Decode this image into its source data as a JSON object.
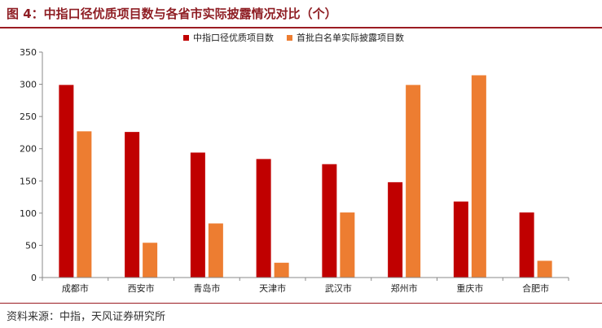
{
  "header": {
    "figure_title": "图 4：中指口径优质项目数与各省市实际披露情况对比（个）"
  },
  "footer": {
    "source": "资料来源：中指，天风证券研究所"
  },
  "colors": {
    "accent": "#9b1c22",
    "series_1": "#c00000",
    "series_2": "#ed7d31"
  },
  "chart_data": {
    "type": "bar",
    "title": "",
    "xlabel": "",
    "ylabel": "",
    "categories": [
      "成都市",
      "西安市",
      "青岛市",
      "天津市",
      "武汉市",
      "郑州市",
      "重庆市",
      "合肥市"
    ],
    "series": [
      {
        "name": "中指口径优质项目数",
        "color": "#c00000",
        "values": [
          299,
          226,
          194,
          184,
          176,
          148,
          118,
          101
        ]
      },
      {
        "name": "首批白名单实际披露项目数",
        "color": "#ed7d31",
        "values": [
          227,
          54,
          84,
          23,
          101,
          299,
          314,
          26
        ]
      }
    ],
    "ylim": [
      0,
      350
    ],
    "yticks": [
      0,
      50,
      100,
      150,
      200,
      250,
      300,
      350
    ],
    "grid": false,
    "legend": "top-center"
  }
}
